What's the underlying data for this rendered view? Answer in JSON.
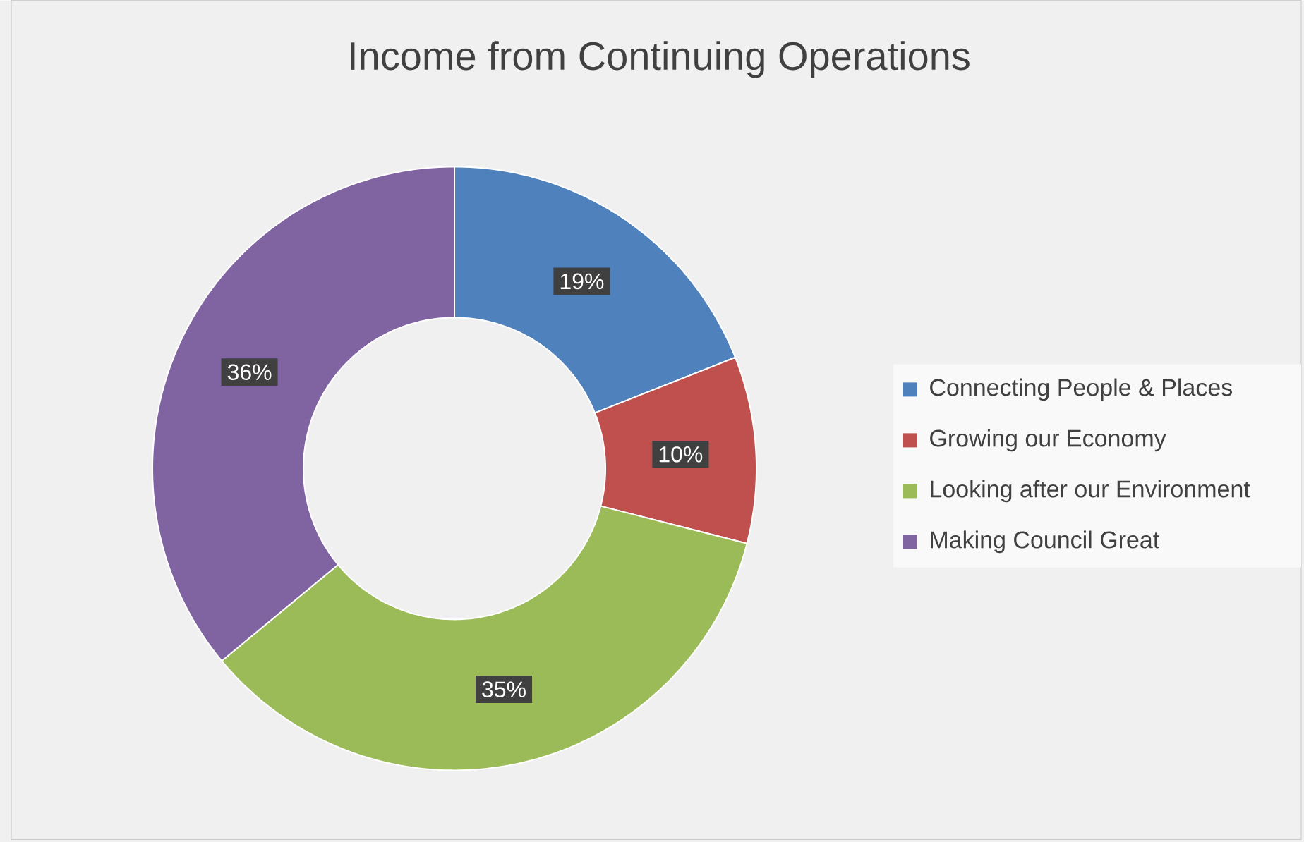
{
  "chart_data": {
    "type": "donut",
    "title": "Income from Continuing Operations",
    "categories": [
      "Connecting People & Places",
      "Growing our Economy",
      "Looking after our Environment",
      "Making Council Great"
    ],
    "values": [
      19,
      10,
      35,
      36
    ],
    "value_labels": [
      "19%",
      "10%",
      "35%",
      "36%"
    ],
    "colors": [
      "#4f81bd",
      "#c0504d",
      "#9bbb59",
      "#8064a2"
    ],
    "legend": "right"
  }
}
